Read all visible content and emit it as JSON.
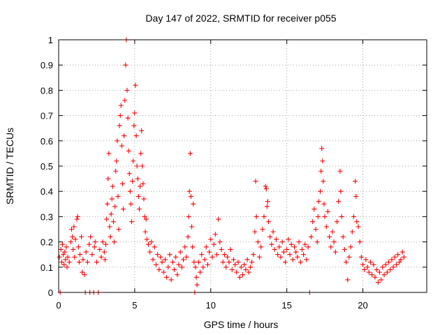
{
  "chart_data": {
    "type": "scatter",
    "title": "Day 147 of 2022, SRMTID for receiver p055",
    "xlabel": "GPS time / hours",
    "ylabel": "SRMTID / TECUs",
    "xlim": [
      0,
      24.2
    ],
    "ylim": [
      0,
      1
    ],
    "xticks": [
      0,
      5,
      10,
      15,
      20
    ],
    "xtick_labels": [
      "0",
      "5",
      "10",
      "15",
      "20"
    ],
    "yticks": [
      0,
      0.1,
      0.2,
      0.3,
      0.4,
      0.5,
      0.6,
      0.7,
      0.8,
      0.9,
      1
    ],
    "ytick_labels": [
      "0",
      "0.1",
      "0.2",
      "0.3",
      "0.4",
      "0.5",
      "0.6",
      "0.7",
      "0.8",
      "0.9",
      "1"
    ],
    "grid": true,
    "marker": "plus",
    "color": "#ff0000",
    "series": [
      {
        "name": "SRMTID",
        "points": [
          [
            0.05,
            0.14
          ],
          [
            0.1,
            0.0
          ],
          [
            0.15,
            0.17
          ],
          [
            0.2,
            0.12
          ],
          [
            0.25,
            0.19
          ],
          [
            0.3,
            0.15
          ],
          [
            0.35,
            0.11
          ],
          [
            0.4,
            0.16
          ],
          [
            0.45,
            0.13
          ],
          [
            0.5,
            0.18
          ],
          [
            0.55,
            0.1
          ],
          [
            0.6,
            0.14
          ],
          [
            0.7,
            0.12
          ],
          [
            0.8,
            0.2
          ],
          [
            0.85,
            0.25
          ],
          [
            0.9,
            0.22
          ],
          [
            0.95,
            0.17
          ],
          [
            1.0,
            0.26
          ],
          [
            1.05,
            0.14
          ],
          [
            1.1,
            0.21
          ],
          [
            1.2,
            0.29
          ],
          [
            1.25,
            0.3
          ],
          [
            1.3,
            0.18
          ],
          [
            1.35,
            0.12
          ],
          [
            1.4,
            0.15
          ],
          [
            1.5,
            0.22
          ],
          [
            1.55,
            0.08
          ],
          [
            1.6,
            0.13
          ],
          [
            1.7,
            0.07
          ],
          [
            1.75,
            0.0
          ],
          [
            1.8,
            0.16
          ],
          [
            1.9,
            0.12
          ],
          [
            2.0,
            0.19
          ],
          [
            2.05,
            0.0
          ],
          [
            2.1,
            0.22
          ],
          [
            2.2,
            0.15
          ],
          [
            2.3,
            0.0
          ],
          [
            2.35,
            0.18
          ],
          [
            2.4,
            0.2
          ],
          [
            2.5,
            0.12
          ],
          [
            2.6,
            0.0
          ],
          [
            2.7,
            0.17
          ],
          [
            2.8,
            0.14
          ],
          [
            2.9,
            0.2
          ],
          [
            3.0,
            0.16
          ],
          [
            3.05,
            0.13
          ],
          [
            3.1,
            0.19
          ],
          [
            3.15,
            0.29
          ],
          [
            3.2,
            0.35
          ],
          [
            3.25,
            0.45
          ],
          [
            3.3,
            0.55
          ],
          [
            3.35,
            0.26
          ],
          [
            3.4,
            0.22
          ],
          [
            3.45,
            0.31
          ],
          [
            3.5,
            0.37
          ],
          [
            3.55,
            0.42
          ],
          [
            3.6,
            0.28
          ],
          [
            3.65,
            0.2
          ],
          [
            3.7,
            0.34
          ],
          [
            3.75,
            0.48
          ],
          [
            3.8,
            0.52
          ],
          [
            3.85,
            0.6
          ],
          [
            3.9,
            0.38
          ],
          [
            3.95,
            0.25
          ],
          [
            4.0,
            0.66
          ],
          [
            4.05,
            0.7
          ],
          [
            4.1,
            0.74
          ],
          [
            4.15,
            0.58
          ],
          [
            4.2,
            0.43
          ],
          [
            4.25,
            0.33
          ],
          [
            4.3,
            0.62
          ],
          [
            4.35,
            0.76
          ],
          [
            4.4,
            0.9
          ],
          [
            4.45,
            1.0
          ],
          [
            4.5,
            0.8
          ],
          [
            4.55,
            0.69
          ],
          [
            4.6,
            0.56
          ],
          [
            4.65,
            0.47
          ],
          [
            4.7,
            0.4
          ],
          [
            4.75,
            0.35
          ],
          [
            4.8,
            0.28
          ],
          [
            4.85,
            0.44
          ],
          [
            4.9,
            0.52
          ],
          [
            4.95,
            0.66
          ],
          [
            5.0,
            0.71
          ],
          [
            5.05,
            0.82
          ],
          [
            5.1,
            0.62
          ],
          [
            5.15,
            0.5
          ],
          [
            5.2,
            0.45
          ],
          [
            5.25,
            0.38
          ],
          [
            5.3,
            0.33
          ],
          [
            5.35,
            0.42
          ],
          [
            5.4,
            0.55
          ],
          [
            5.45,
            0.64
          ],
          [
            5.5,
            0.5
          ],
          [
            5.55,
            0.43
          ],
          [
            5.6,
            0.37
          ],
          [
            5.65,
            0.3
          ],
          [
            5.7,
            0.24
          ],
          [
            5.75,
            0.29
          ],
          [
            5.8,
            0.21
          ],
          [
            5.9,
            0.19
          ],
          [
            6.0,
            0.16
          ],
          [
            6.1,
            0.2
          ],
          [
            6.2,
            0.13
          ],
          [
            6.3,
            0.18
          ],
          [
            6.4,
            0.11
          ],
          [
            6.5,
            0.15
          ],
          [
            6.6,
            0.09
          ],
          [
            6.7,
            0.14
          ],
          [
            6.8,
            0.12
          ],
          [
            6.9,
            0.08
          ],
          [
            7.0,
            0.13
          ],
          [
            7.1,
            0.06
          ],
          [
            7.2,
            0.1
          ],
          [
            7.3,
            0.15
          ],
          [
            7.4,
            0.05
          ],
          [
            7.5,
            0.12
          ],
          [
            7.6,
            0.09
          ],
          [
            7.7,
            0.14
          ],
          [
            7.8,
            0.07
          ],
          [
            7.9,
            0.11
          ],
          [
            8.0,
            0.16
          ],
          [
            8.1,
            0.1
          ],
          [
            8.2,
            0.13
          ],
          [
            8.3,
            0.18
          ],
          [
            8.4,
            0.14
          ],
          [
            8.5,
            0.22
          ],
          [
            8.55,
            0.3
          ],
          [
            8.6,
            0.4
          ],
          [
            8.65,
            0.55
          ],
          [
            8.7,
            0.38
          ],
          [
            8.75,
            0.26
          ],
          [
            8.8,
            0.18
          ],
          [
            8.85,
            0.35
          ],
          [
            8.9,
            0.12
          ],
          [
            8.95,
            0.0
          ],
          [
            9.0,
            0.1
          ],
          [
            9.05,
            0.06
          ],
          [
            9.1,
            0.03
          ],
          [
            9.2,
            0.12
          ],
          [
            9.3,
            0.08
          ],
          [
            9.4,
            0.15
          ],
          [
            9.5,
            0.1
          ],
          [
            9.6,
            0.13
          ],
          [
            9.7,
            0.18
          ],
          [
            9.8,
            0.11
          ],
          [
            9.9,
            0.16
          ],
          [
            10.0,
            0.21
          ],
          [
            10.1,
            0.14
          ],
          [
            10.2,
            0.19
          ],
          [
            10.3,
            0.23
          ],
          [
            10.4,
            0.15
          ],
          [
            10.5,
            0.29
          ],
          [
            10.6,
            0.2
          ],
          [
            10.7,
            0.17
          ],
          [
            10.8,
            0.12
          ],
          [
            10.9,
            0.15
          ],
          [
            11.0,
            0.1
          ],
          [
            11.1,
            0.14
          ],
          [
            11.2,
            0.12
          ],
          [
            11.3,
            0.17
          ],
          [
            11.4,
            0.09
          ],
          [
            11.5,
            0.13
          ],
          [
            11.6,
            0.11
          ],
          [
            11.7,
            0.08
          ],
          [
            11.8,
            0.12
          ],
          [
            11.9,
            0.06
          ],
          [
            12.0,
            0.1
          ],
          [
            12.1,
            0.07
          ],
          [
            12.2,
            0.11
          ],
          [
            12.3,
            0.09
          ],
          [
            12.4,
            0.13
          ],
          [
            12.5,
            0.08
          ],
          [
            12.6,
            0.1
          ],
          [
            12.7,
            0.12
          ],
          [
            12.8,
            0.15
          ],
          [
            12.9,
            0.24
          ],
          [
            12.95,
            0.44
          ],
          [
            13.0,
            0.3
          ],
          [
            13.1,
            0.2
          ],
          [
            13.2,
            0.14
          ],
          [
            13.3,
            0.18
          ],
          [
            13.4,
            0.25
          ],
          [
            13.5,
            0.3
          ],
          [
            13.6,
            0.42
          ],
          [
            13.65,
            0.41
          ],
          [
            13.7,
            0.34
          ],
          [
            13.75,
            0.36
          ],
          [
            13.8,
            0.28
          ],
          [
            13.9,
            0.22
          ],
          [
            14.0,
            0.19
          ],
          [
            14.1,
            0.24
          ],
          [
            14.2,
            0.17
          ],
          [
            14.3,
            0.21
          ],
          [
            14.4,
            0.15
          ],
          [
            14.5,
            0.18
          ],
          [
            14.6,
            0.14
          ],
          [
            14.7,
            0.2
          ],
          [
            14.8,
            0.16
          ],
          [
            14.9,
            0.12
          ],
          [
            15.0,
            0.17
          ],
          [
            15.1,
            0.21
          ],
          [
            15.2,
            0.15
          ],
          [
            15.3,
            0.19
          ],
          [
            15.4,
            0.13
          ],
          [
            15.5,
            0.18
          ],
          [
            15.6,
            0.16
          ],
          [
            15.7,
            0.14
          ],
          [
            15.8,
            0.2
          ],
          [
            15.9,
            0.12
          ],
          [
            16.0,
            0.17
          ],
          [
            16.1,
            0.15
          ],
          [
            16.2,
            0.19
          ],
          [
            16.3,
            0.13
          ],
          [
            16.4,
            0.18
          ],
          [
            16.5,
            0.0
          ],
          [
            16.6,
            0.22
          ],
          [
            16.7,
            0.28
          ],
          [
            16.8,
            0.33
          ],
          [
            16.9,
            0.25
          ],
          [
            17.0,
            0.2
          ],
          [
            17.05,
            0.3
          ],
          [
            17.1,
            0.36
          ],
          [
            17.2,
            0.4
          ],
          [
            17.25,
            0.48
          ],
          [
            17.3,
            0.57
          ],
          [
            17.35,
            0.52
          ],
          [
            17.4,
            0.44
          ],
          [
            17.45,
            0.35
          ],
          [
            17.5,
            0.3
          ],
          [
            17.6,
            0.26
          ],
          [
            17.7,
            0.32
          ],
          [
            17.8,
            0.22
          ],
          [
            17.9,
            0.18
          ],
          [
            18.0,
            0.24
          ],
          [
            18.1,
            0.2
          ],
          [
            18.2,
            0.16
          ],
          [
            18.3,
            0.28
          ],
          [
            18.4,
            0.36
          ],
          [
            18.5,
            0.48
          ],
          [
            18.55,
            0.4
          ],
          [
            18.6,
            0.3
          ],
          [
            18.7,
            0.22
          ],
          [
            18.8,
            0.17
          ],
          [
            18.9,
            0.12
          ],
          [
            19.0,
            0.05
          ],
          [
            19.1,
            0.14
          ],
          [
            19.2,
            0.18
          ],
          [
            19.3,
            0.24
          ],
          [
            19.4,
            0.3
          ],
          [
            19.5,
            0.44
          ],
          [
            19.55,
            0.38
          ],
          [
            19.6,
            0.28
          ],
          [
            19.7,
            0.26
          ],
          [
            19.8,
            0.2
          ],
          [
            19.9,
            0.14
          ],
          [
            20.0,
            0.11
          ],
          [
            20.1,
            0.09
          ],
          [
            20.2,
            0.13
          ],
          [
            20.3,
            0.1
          ],
          [
            20.4,
            0.08
          ],
          [
            20.5,
            0.12
          ],
          [
            20.6,
            0.07
          ],
          [
            20.7,
            0.11
          ],
          [
            20.8,
            0.06
          ],
          [
            20.9,
            0.09
          ],
          [
            21.0,
            0.04
          ],
          [
            21.1,
            0.08
          ],
          [
            21.2,
            0.05
          ],
          [
            21.3,
            0.1
          ],
          [
            21.4,
            0.07
          ],
          [
            21.5,
            0.11
          ],
          [
            21.6,
            0.08
          ],
          [
            21.7,
            0.12
          ],
          [
            21.8,
            0.09
          ],
          [
            21.9,
            0.13
          ],
          [
            22.0,
            0.1
          ],
          [
            22.1,
            0.14
          ],
          [
            22.2,
            0.11
          ],
          [
            22.3,
            0.15
          ],
          [
            22.4,
            0.12
          ],
          [
            22.5,
            0.13
          ],
          [
            22.6,
            0.16
          ],
          [
            22.7,
            0.14
          ]
        ]
      }
    ]
  }
}
